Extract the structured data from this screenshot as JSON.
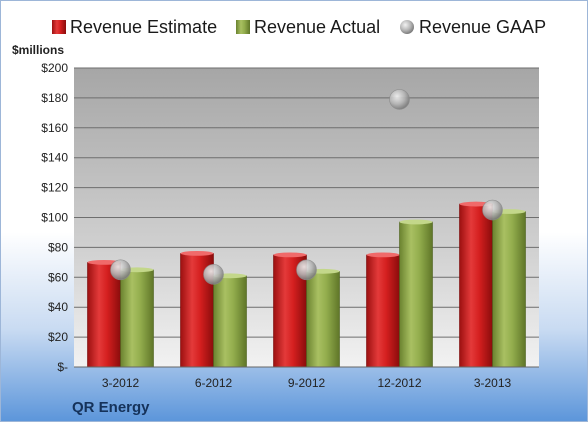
{
  "chart_data": {
    "type": "bar",
    "unit_label": "$millions",
    "company": "QR Energy",
    "categories": [
      "3-2012",
      "6-2012",
      "9-2012",
      "12-2012",
      "3-2013"
    ],
    "series": [
      {
        "name": "Revenue Estimate",
        "kind": "bar",
        "color": "#d81e1e",
        "values": [
          70,
          76,
          75,
          75,
          109
        ]
      },
      {
        "name": "Revenue Actual",
        "kind": "bar",
        "color": "#8faa4a",
        "values": [
          65,
          61,
          64,
          97,
          104
        ]
      },
      {
        "name": "Revenue GAAP",
        "kind": "scatter",
        "color": "#b8b8b8",
        "values": [
          65,
          62,
          65,
          179,
          105
        ]
      }
    ],
    "ylim": [
      0,
      200
    ],
    "yticks": [
      0,
      20,
      40,
      60,
      80,
      100,
      120,
      140,
      160,
      180,
      200
    ],
    "ytick_labels": [
      "$-",
      "$20",
      "$40",
      "$60",
      "$80",
      "$100",
      "$120",
      "$140",
      "$160",
      "$180",
      "$200"
    ],
    "grid": true,
    "legend_position": "top"
  }
}
